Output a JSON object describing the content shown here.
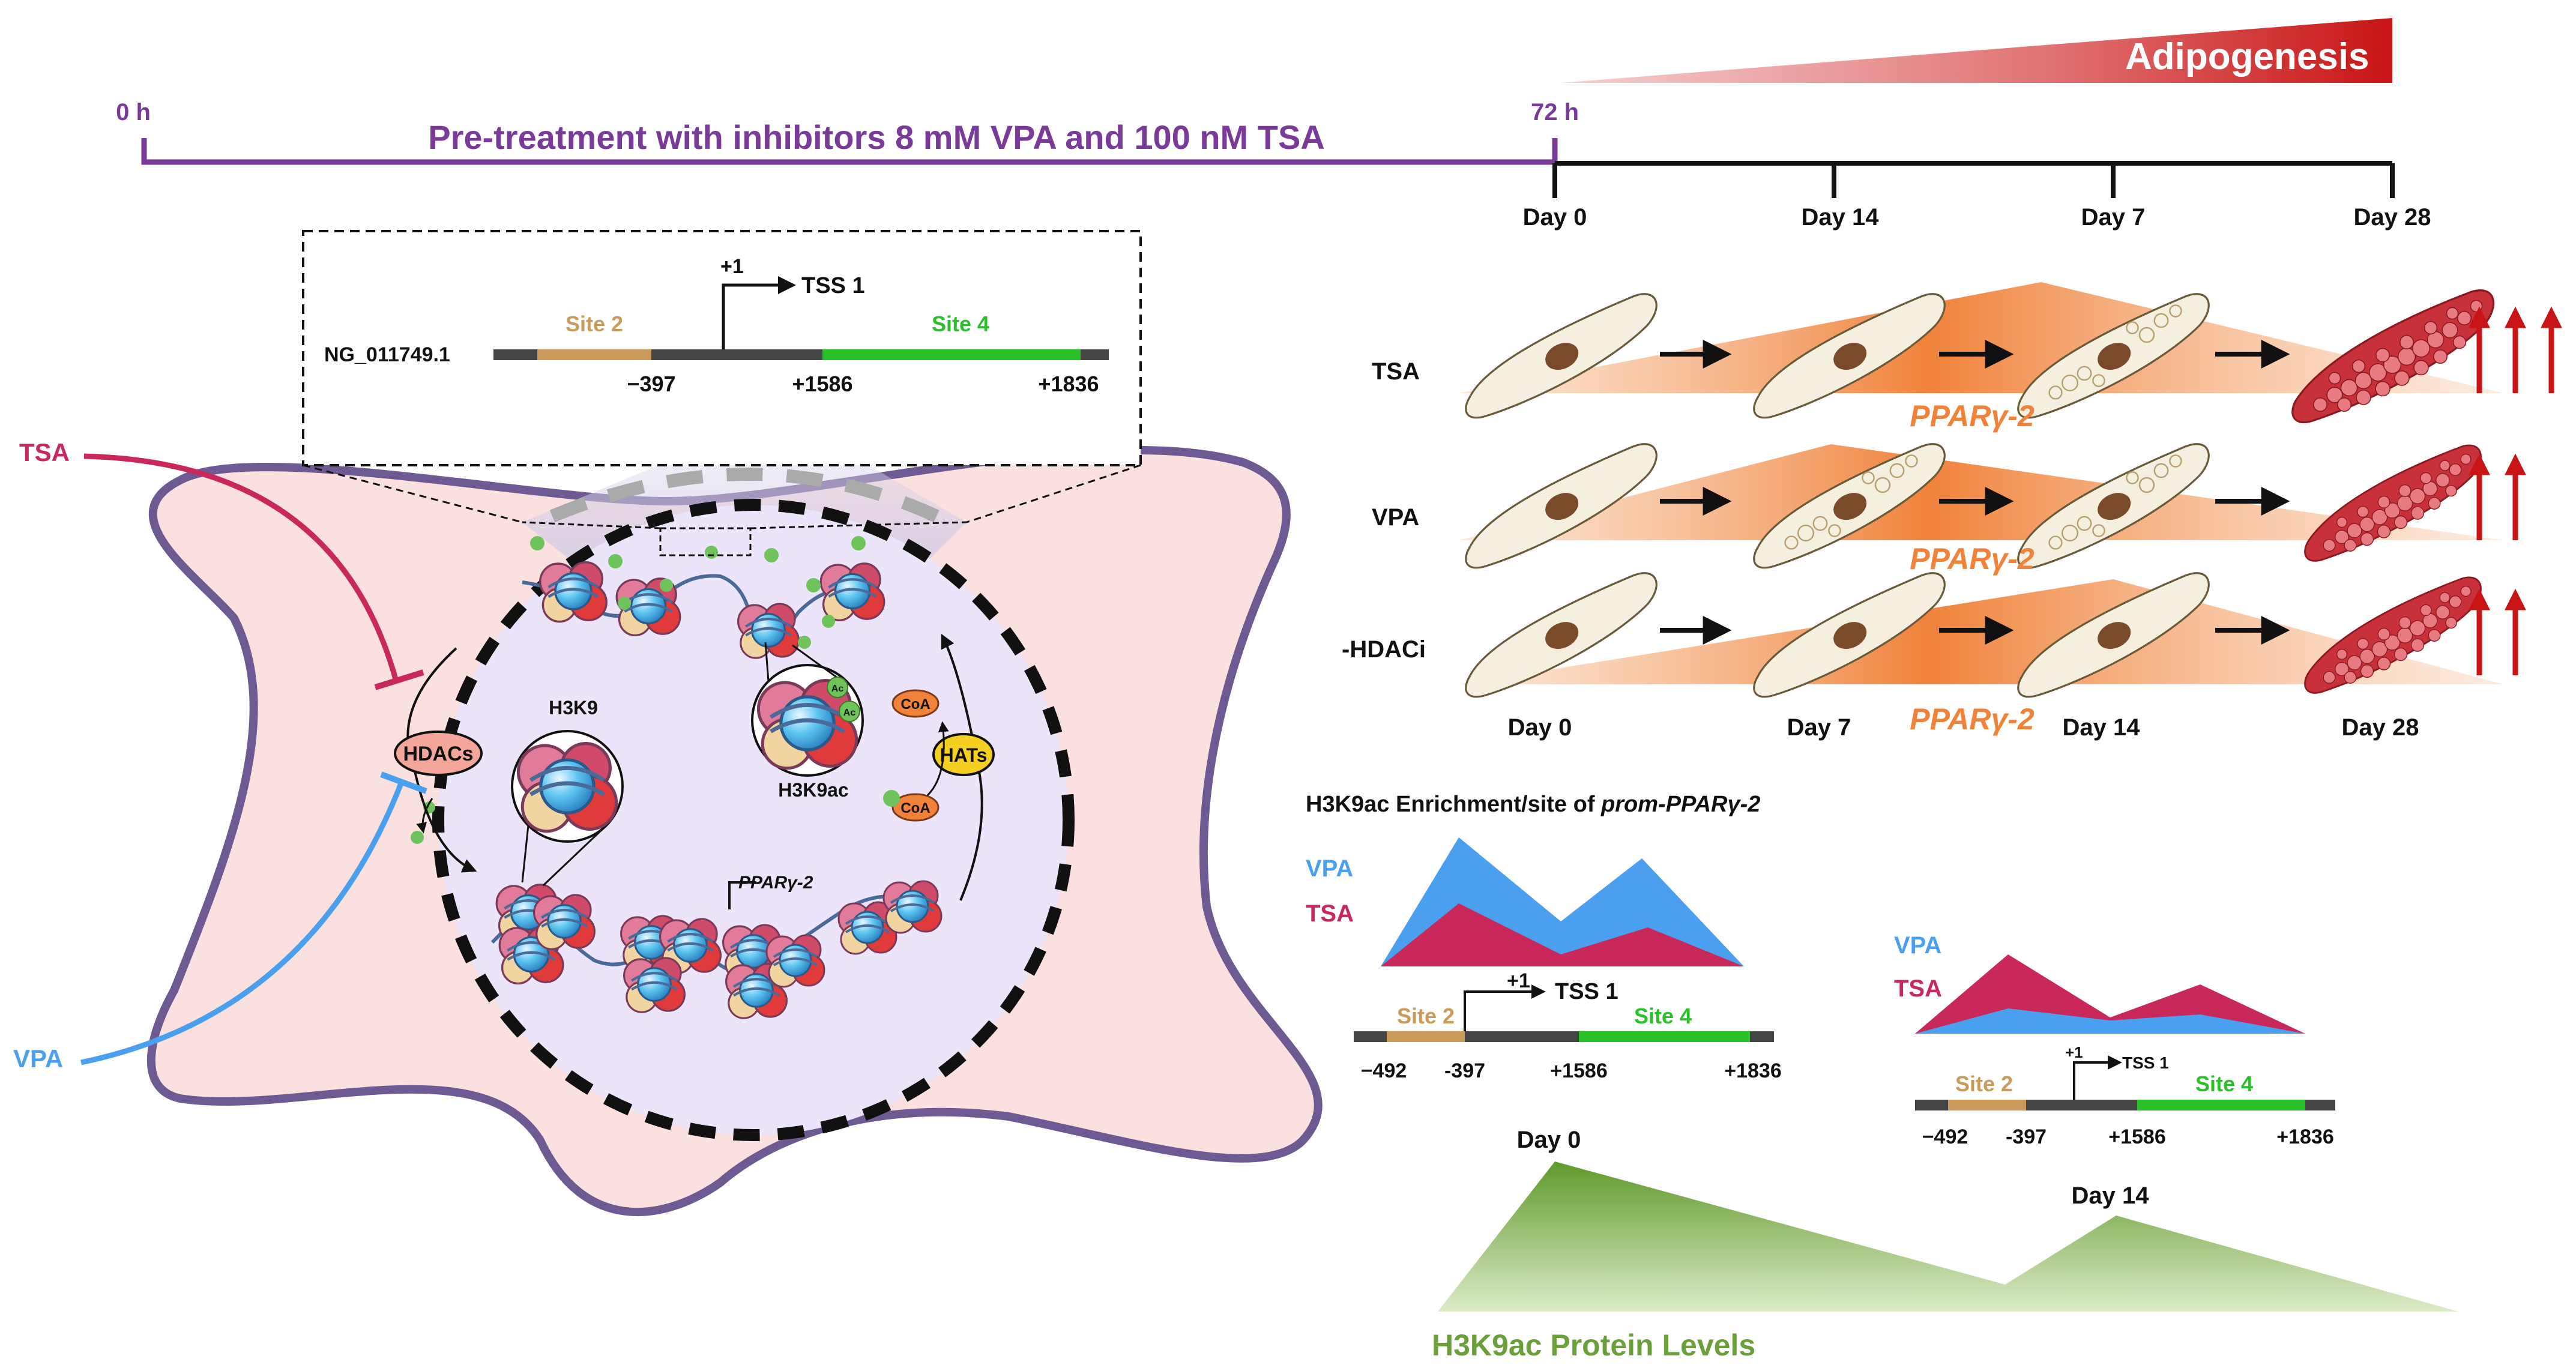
{
  "colors": {
    "purple": "#7a3a9a",
    "black": "#111111",
    "crimson": "#c8285a",
    "blue": "#4a9fef",
    "orange": "#f0823a",
    "green": "#6aa03a",
    "site2": "#c99a5a",
    "site4": "#2ac02a",
    "red": "#c81414",
    "cellPink": "#fbe0e0",
    "cellBorder": "#6e5a92",
    "nucleus": "#ece4fa"
  },
  "timeline": {
    "start_label": "0 h",
    "mid_label": "72 h",
    "pretreatment_label": "Pre-treatment with inhibitors 8 mM VPA and 100 nM TSA",
    "adipogenesis_label": "Adipogenesis",
    "day_ticks": [
      "Day 0",
      "Day 14",
      "Day 7",
      "Day 28"
    ]
  },
  "gene_inset": {
    "accession": "NG_011749.1",
    "site2": "Site 2",
    "site4": "Site 4",
    "tss_plus": "+1",
    "tss": "TSS 1",
    "pos_a": "−397",
    "pos_b": "+1586",
    "pos_c": "+1836"
  },
  "cell": {
    "tsa": "TSA",
    "vpa": "VPA",
    "hdacs": "HDACs",
    "hats": "HATs",
    "coa": "CoA",
    "ac": "Ac",
    "h3k9": "H3K9",
    "h3k9ac": "H3K9ac",
    "pparg": "PPARγ-2"
  },
  "differentiation": {
    "rows": [
      {
        "label": "TSA",
        "pparg": "PPARγ-2",
        "arrows": 3
      },
      {
        "label": "VPA",
        "pparg": "PPARγ-2",
        "arrows": 2
      },
      {
        "label": "-HDACi",
        "pparg": "PPARγ-2",
        "arrows": 2
      }
    ],
    "day_labels": [
      "Day 0",
      "Day 7",
      "Day 14",
      "Day 28"
    ]
  },
  "enrichment": {
    "title_prefix": "H3K9ac Enrichment/site of ",
    "title_gene": "prom-PPARγ-2",
    "vpa": "VPA",
    "tsa": "TSA",
    "site2": "Site 2",
    "site4": "Site 4",
    "tss_plus": "+1",
    "tss": "TSS 1",
    "pos1": "−492",
    "pos2": "-397",
    "pos3": "+1586",
    "pos4": "+1836",
    "day0": "Day 0",
    "day14": "Day 14"
  },
  "protein_levels": {
    "label": "H3K9ac Protein Levels"
  }
}
